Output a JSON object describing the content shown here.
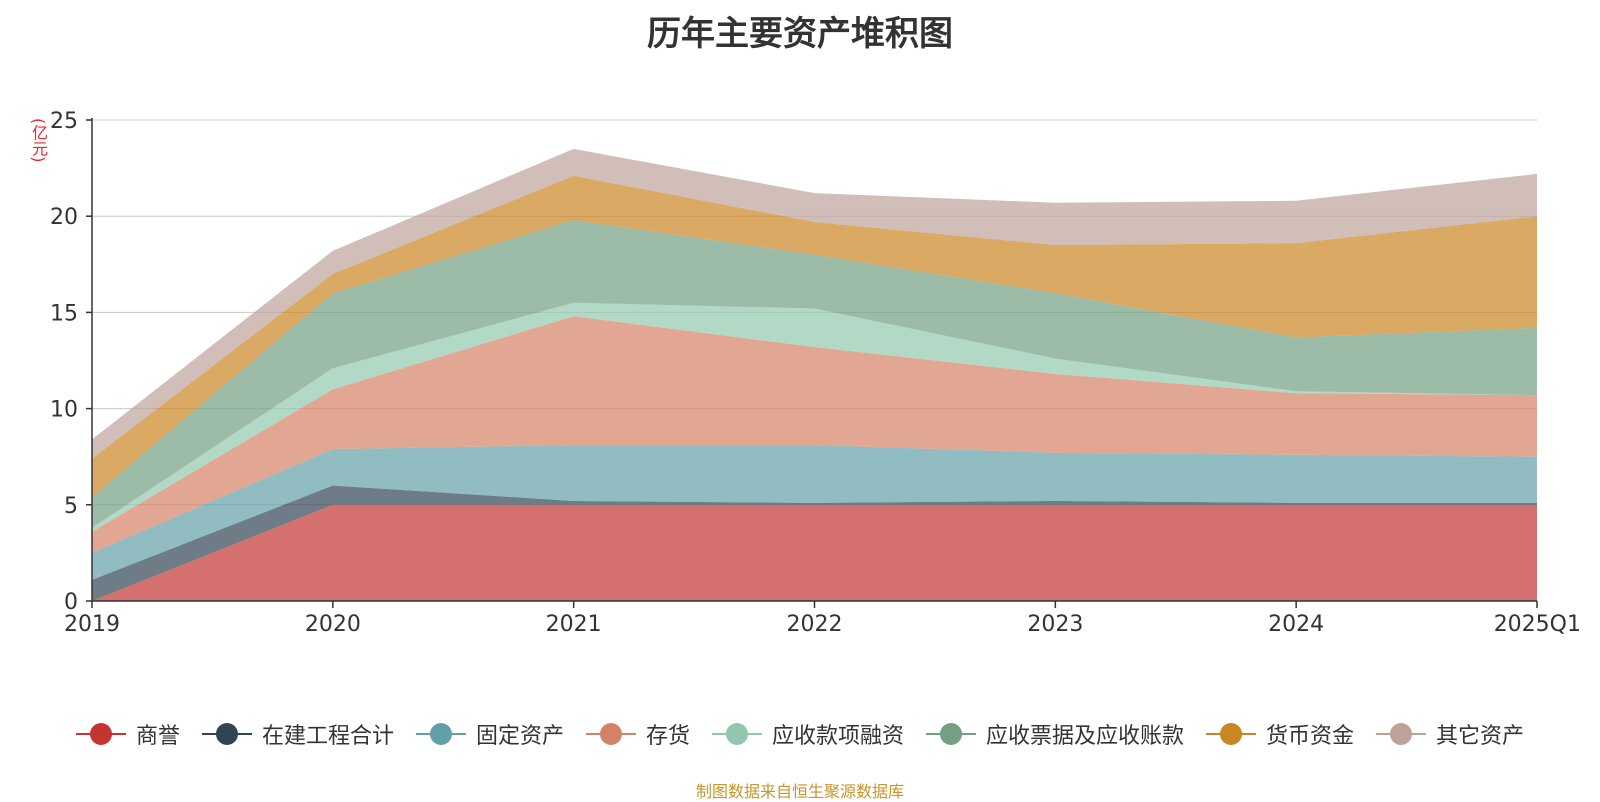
{
  "chart_data": {
    "type": "area",
    "stacked": true,
    "title": "历年主要资产堆积图",
    "ylabel": "(亿元)",
    "categories": [
      "2019",
      "2020",
      "2021",
      "2022",
      "2023",
      "2024",
      "2025Q1"
    ],
    "y_ticks": [
      "0",
      "5",
      "10",
      "15",
      "20",
      "25"
    ],
    "ylim": [
      0,
      25
    ],
    "grid": true,
    "legend_position": "bottom",
    "series": [
      {
        "name": "商誉",
        "color": "#c23531",
        "values": [
          0,
          5.0,
          5.0,
          5.0,
          5.0,
          5.0,
          5.0
        ]
      },
      {
        "name": "在建工程合计",
        "color": "#2f4554",
        "values": [
          1.1,
          1.0,
          0.2,
          0.1,
          0.2,
          0.1,
          0.1
        ]
      },
      {
        "name": "固定资产",
        "color": "#61a0a8",
        "values": [
          1.4,
          1.9,
          2.9,
          3.0,
          2.5,
          2.5,
          2.4
        ]
      },
      {
        "name": "存货",
        "color": "#d48265",
        "values": [
          1.1,
          3.1,
          6.7,
          5.1,
          4.1,
          3.2,
          3.2
        ]
      },
      {
        "name": "应收款项融资",
        "color": "#91c7ae",
        "values": [
          0.2,
          1.1,
          0.7,
          2.0,
          0.8,
          0.1,
          0.0
        ]
      },
      {
        "name": "应收票据及应收账款",
        "color": "#749f83",
        "values": [
          1.6,
          3.9,
          4.3,
          2.8,
          3.4,
          2.8,
          3.5
        ]
      },
      {
        "name": "货币资金",
        "color": "#ca8622",
        "values": [
          2.0,
          1.0,
          2.3,
          1.7,
          2.5,
          4.9,
          5.8
        ]
      },
      {
        "name": "其它资产",
        "color": "#bda29a",
        "values": [
          1.0,
          1.2,
          1.4,
          1.5,
          2.2,
          2.2,
          2.2
        ]
      }
    ]
  },
  "source_note": "制图数据来自恒生聚源数据库"
}
